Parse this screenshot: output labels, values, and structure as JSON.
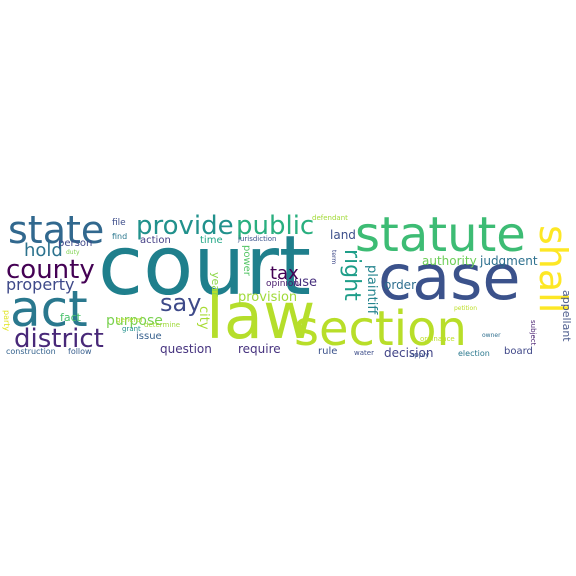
{
  "word_cloud": {
    "words": [
      {
        "text": "court",
        "color": "#1f7f8c"
      },
      {
        "text": "case",
        "color": "#3b528b"
      },
      {
        "text": "law",
        "color": "#b5de2b"
      },
      {
        "text": "act",
        "color": "#2a788e"
      },
      {
        "text": "statute",
        "color": "#3dbc74"
      },
      {
        "text": "section",
        "color": "#b8de29"
      },
      {
        "text": "state",
        "color": "#31688e"
      },
      {
        "text": "shall",
        "color": "#fde725"
      },
      {
        "text": "county",
        "color": "#440154"
      },
      {
        "text": "district",
        "color": "#482878"
      },
      {
        "text": "provide",
        "color": "#21918c"
      },
      {
        "text": "public",
        "color": "#29af7f"
      },
      {
        "text": "say",
        "color": "#3e4a89"
      },
      {
        "text": "right",
        "color": "#1f9e89"
      },
      {
        "text": "hold",
        "color": "#2c728e"
      },
      {
        "text": "property",
        "color": "#3e4989"
      },
      {
        "text": "tax",
        "color": "#440154"
      },
      {
        "text": "provision",
        "color": "#a0da39"
      },
      {
        "text": "purpose",
        "color": "#7ad151"
      },
      {
        "text": "require",
        "color": "#46327e"
      },
      {
        "text": "question",
        "color": "#46337f"
      },
      {
        "text": "decision",
        "color": "#414487"
      },
      {
        "text": "order",
        "color": "#2e6e8e"
      },
      {
        "text": "authority",
        "color": "#6ece58"
      },
      {
        "text": "judgment",
        "color": "#2d708e"
      },
      {
        "text": "plaintiff",
        "color": "#25848e"
      },
      {
        "text": "appellant",
        "color": "#4c5c8c"
      },
      {
        "text": "land",
        "color": "#3c4f8a"
      },
      {
        "text": "action",
        "color": "#433e85"
      },
      {
        "text": "time",
        "color": "#21a685"
      },
      {
        "text": "issue",
        "color": "#355f8d"
      },
      {
        "text": "fact",
        "color": "#4ac16d"
      },
      {
        "text": "city",
        "color": "#a8db34"
      },
      {
        "text": "year",
        "color": "#8bd646"
      },
      {
        "text": "power",
        "color": "#56c667"
      },
      {
        "text": "use",
        "color": "#472f7d"
      },
      {
        "text": "rule",
        "color": "#3b528b"
      },
      {
        "text": "board",
        "color": "#3f4788"
      },
      {
        "text": "person",
        "color": "#3f4889"
      },
      {
        "text": "opinion",
        "color": "#481a6c"
      },
      {
        "text": "file",
        "color": "#3d4d8a"
      },
      {
        "text": "find",
        "color": "#2a778e"
      },
      {
        "text": "jurisdiction",
        "color": "#3b528b"
      },
      {
        "text": "defendant",
        "color": "#a2da37"
      },
      {
        "text": "grant",
        "color": "#21918c"
      },
      {
        "text": "general",
        "color": "#b2dd2d"
      },
      {
        "text": "duty",
        "color": "#7fd34e"
      },
      {
        "text": "determine",
        "color": "#9fda3a"
      },
      {
        "text": "petition",
        "color": "#bddf26"
      },
      {
        "text": "ordinance",
        "color": "#bddf26"
      },
      {
        "text": "owner",
        "color": "#2e6e8e"
      },
      {
        "text": "apply",
        "color": "#3b528b"
      },
      {
        "text": "subject",
        "color": "#482071"
      },
      {
        "text": "term",
        "color": "#3e4989"
      },
      {
        "text": "water",
        "color": "#3d4d8a"
      },
      {
        "text": "election",
        "color": "#2a788e"
      },
      {
        "text": "construction",
        "color": "#33628d"
      },
      {
        "text": "follow",
        "color": "#365d8d"
      },
      {
        "text": "party",
        "color": "#dfe318"
      }
    ]
  }
}
